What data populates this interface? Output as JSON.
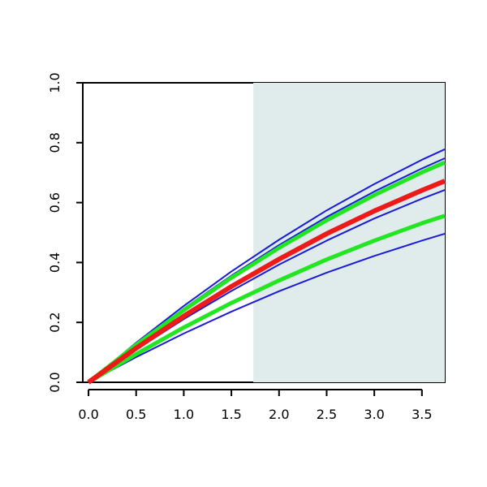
{
  "chart_data": {
    "type": "line",
    "x": [
      0,
      0.5,
      1,
      1.5,
      2,
      2.5,
      3,
      3.5,
      3.74
    ],
    "series": [
      {
        "color": "#1a1adc",
        "width": 2,
        "values": [
          0,
          0.132,
          0.255,
          0.37,
          0.476,
          0.574,
          0.662,
          0.743,
          0.778
        ]
      },
      {
        "color": "#1a1adc",
        "width": 2,
        "values": [
          0,
          0.127,
          0.246,
          0.356,
          0.458,
          0.552,
          0.637,
          0.714,
          0.748
        ]
      },
      {
        "color": "#1a1adc",
        "width": 2,
        "values": [
          0,
          0.109,
          0.211,
          0.305,
          0.393,
          0.473,
          0.547,
          0.613,
          0.642
        ]
      },
      {
        "color": "#1a1adc",
        "width": 2,
        "values": [
          0,
          0.084,
          0.163,
          0.236,
          0.304,
          0.366,
          0.422,
          0.473,
          0.496
        ]
      },
      {
        "color": "#22e622",
        "width": 5,
        "values": [
          0,
          0.125,
          0.241,
          0.349,
          0.449,
          0.541,
          0.625,
          0.701,
          0.734
        ]
      },
      {
        "color": "#22e622",
        "width": 5,
        "values": [
          0,
          0.094,
          0.183,
          0.265,
          0.34,
          0.41,
          0.473,
          0.531,
          0.556
        ]
      },
      {
        "color": "#ee1a1a",
        "width": 6,
        "values": [
          0,
          0.114,
          0.221,
          0.32,
          0.411,
          0.496,
          0.572,
          0.641,
          0.672
        ]
      }
    ],
    "shaded_region": {
      "xmin": 1.73,
      "xmax": 3.74,
      "color": "#e0ecec"
    },
    "xlim": [
      -0.06,
      3.74
    ],
    "ylim": [
      0,
      1
    ],
    "xticks": [
      {
        "value": 0,
        "label": "0.0"
      },
      {
        "value": 0.5,
        "label": "0.5"
      },
      {
        "value": 1,
        "label": "1.0"
      },
      {
        "value": 1.5,
        "label": "1.5"
      },
      {
        "value": 2,
        "label": "2.0"
      },
      {
        "value": 2.5,
        "label": "2.5"
      },
      {
        "value": 3,
        "label": "3.0"
      },
      {
        "value": 3.5,
        "label": "3.5"
      }
    ],
    "yticks": [
      {
        "value": 0,
        "label": "0.0"
      },
      {
        "value": 0.2,
        "label": "0.2"
      },
      {
        "value": 0.4,
        "label": "0.4"
      },
      {
        "value": 0.6,
        "label": "0.6"
      },
      {
        "value": 0.8,
        "label": "0.8"
      },
      {
        "value": 1,
        "label": "1.0"
      }
    ]
  }
}
